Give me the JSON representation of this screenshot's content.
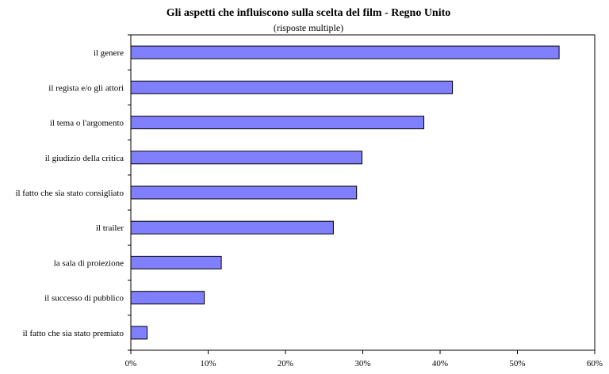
{
  "chart_data": {
    "type": "bar",
    "orientation": "horizontal",
    "title": "Gli aspetti che influiscono sulla scelta del film - Regno Unito",
    "subtitle": "(risposte multiple)",
    "categories": [
      "il genere",
      "il regista e/o gli attori",
      "il tema o l'argomento",
      "il giudizio della critica",
      "il fatto che sia stato consigliato",
      "il trailer",
      "la sala di proiezione",
      "il successo di pubblico",
      "il fatto che sia stato premiato"
    ],
    "values": [
      55.4,
      41.6,
      37.9,
      29.9,
      29.2,
      26.2,
      11.7,
      9.5,
      2.1
    ],
    "xlim": [
      0,
      60
    ],
    "x_ticks": [
      "0%",
      "10%",
      "20%",
      "30%",
      "40%",
      "50%",
      "60%"
    ],
    "grid": false,
    "legend": "none",
    "bar_color": "#8080ff",
    "bar_stroke": "#000000"
  }
}
